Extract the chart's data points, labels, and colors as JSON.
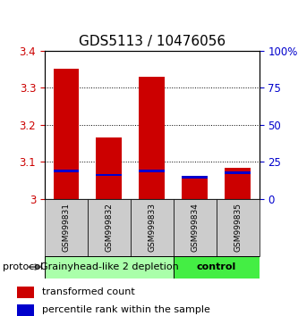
{
  "title": "GDS5113 / 10476056",
  "samples": [
    "GSM999831",
    "GSM999832",
    "GSM999833",
    "GSM999834",
    "GSM999835"
  ],
  "red_tops": [
    3.35,
    3.165,
    3.33,
    3.055,
    3.085
  ],
  "blue_tops": [
    3.075,
    3.065,
    3.075,
    3.06,
    3.07
  ],
  "bar_base": 3.0,
  "ylim": [
    3.0,
    3.4
  ],
  "yticks_left": [
    3.0,
    3.1,
    3.2,
    3.3,
    3.4
  ],
  "yticks_right": [
    0,
    25,
    50,
    75,
    100
  ],
  "ytick_labels_left": [
    "3",
    "3.1",
    "3.2",
    "3.3",
    "3.4"
  ],
  "ytick_labels_right": [
    "0",
    "25",
    "50",
    "75",
    "100%"
  ],
  "grid_vals": [
    3.1,
    3.2,
    3.3
  ],
  "group1_label": "Grainyhead-like 2 depletion",
  "group2_label": "control",
  "group1_color": "#aaffaa",
  "group2_color": "#44ee44",
  "protocol_label": "protocol",
  "red_color": "#cc0000",
  "blue_color": "#0000cc",
  "bar_width": 0.6,
  "legend_red": "transformed count",
  "legend_blue": "percentile rank within the sample",
  "left_color": "#cc0000",
  "right_color": "#0000cc",
  "bg_color": "#ffffff",
  "plot_bg": "#ffffff",
  "label_area_color": "#cccccc",
  "title_fontsize": 11,
  "tick_fontsize": 8.5,
  "legend_fontsize": 8,
  "group_label_fontsize": 8
}
